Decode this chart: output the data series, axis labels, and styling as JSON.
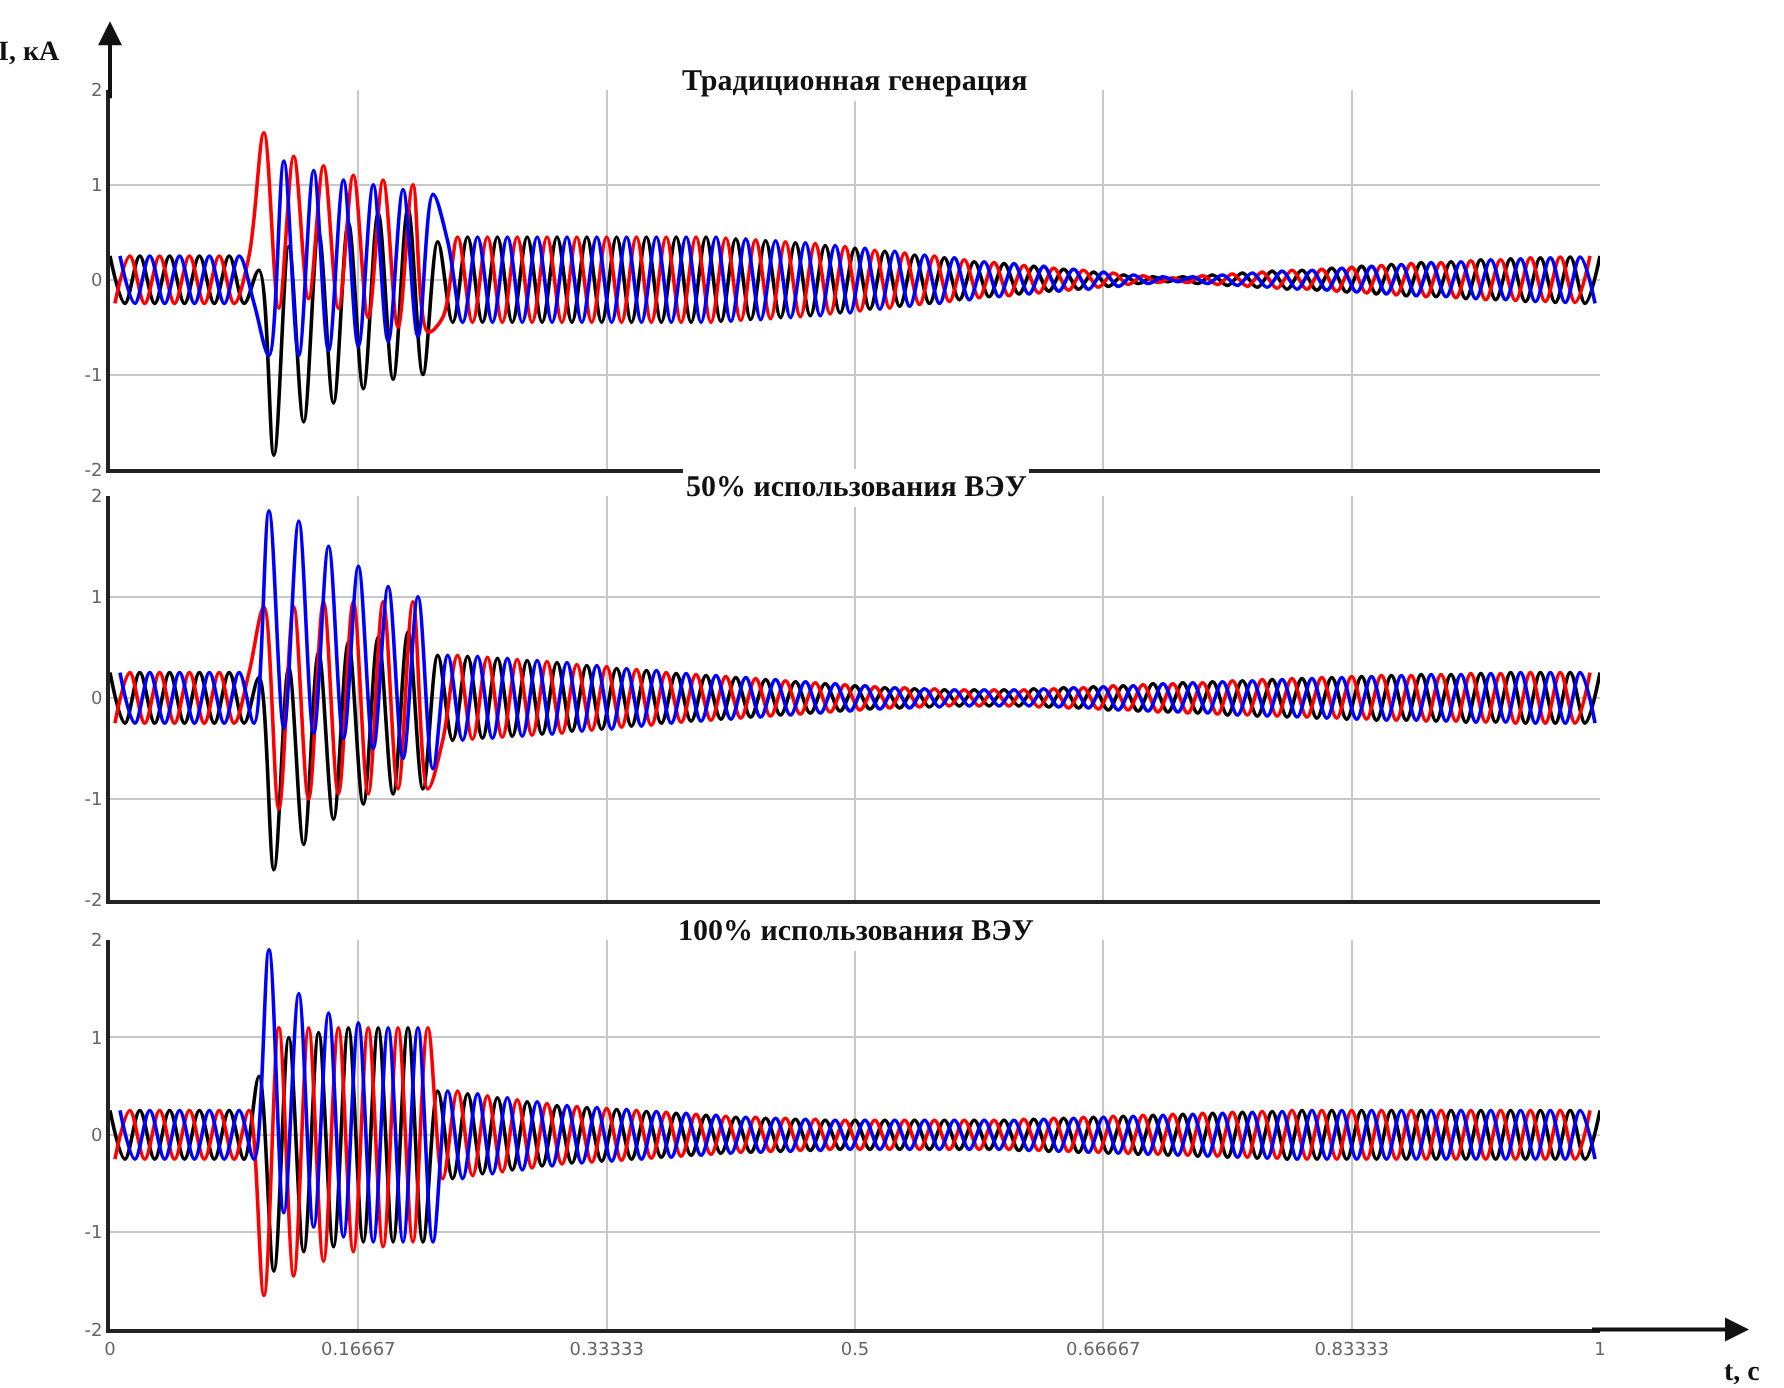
{
  "chart_data": [
    {
      "type": "line",
      "title": "Традиционная генерация",
      "ylabel": "I, кА",
      "xlim": [
        0,
        1
      ],
      "ylim": [
        -2,
        2
      ],
      "xticks": [
        0,
        0.16667,
        0.33333,
        0.5,
        0.66667,
        0.83333,
        1
      ],
      "yticks": [
        -2,
        -1,
        0,
        1,
        2
      ],
      "grid": true,
      "tick_labels": "y",
      "line_style": "solid",
      "series": [
        {
          "color": "#000000",
          "x": [
            0,
            0.01,
            0.02,
            0.03,
            0.04,
            0.05,
            0.06,
            0.07,
            0.08,
            0.09,
            0.1,
            0.11,
            0.12,
            0.13,
            0.14,
            0.15,
            0.16,
            0.17,
            0.18,
            0.19,
            0.2,
            0.21,
            0.22,
            0.23,
            0.24,
            0.25,
            0.26,
            0.27,
            0.28,
            0.29,
            0.3,
            0.31,
            0.32,
            0.33,
            0.34,
            0.35,
            0.36,
            0.37,
            0.38,
            0.39,
            0.4,
            0.41,
            0.42,
            0.43,
            0.44,
            0.45,
            0.46,
            0.47,
            0.48,
            0.49,
            0.5,
            0.51,
            0.52,
            0.53,
            0.54,
            0.55,
            0.56,
            0.57,
            0.58,
            0.59,
            0.6,
            0.61,
            0.62,
            0.63,
            0.64,
            0.65,
            0.66,
            0.67,
            0.68,
            0.69,
            0.7,
            0.71,
            0.72,
            0.73,
            0.74,
            0.75,
            0.76,
            0.77,
            0.78,
            0.79,
            0.8,
            0.81,
            0.82,
            0.83,
            0.84,
            0.85,
            0.86,
            0.87,
            0.88,
            0.89,
            0.9,
            0.91,
            0.92,
            0.93,
            0.94,
            0.95,
            0.96,
            0.97,
            0.98,
            0.99,
            1
          ],
          "values": [
            0.25,
            -0.25,
            0.25,
            -0.25,
            0.25,
            -0.25,
            0.25,
            -0.25,
            0.25,
            -0.25,
            0.1,
            -1.85,
            0.35,
            -1.5,
            0.5,
            -1.3,
            0.6,
            -1.15,
            0.7,
            -1.05,
            0.75,
            -1.0,
            0.4,
            -0.45,
            0.45,
            -0.45,
            0.45,
            -0.45,
            0.45,
            -0.45,
            0.45,
            -0.45,
            0.45,
            -0.45,
            0.45,
            -0.45,
            0.45,
            -0.45,
            0.45,
            -0.45,
            0.45,
            -0.44,
            0.43,
            -0.42,
            0.41,
            -0.4,
            0.39,
            -0.38,
            0.36,
            -0.35,
            0.33,
            -0.31,
            0.3,
            -0.28,
            0.26,
            -0.25,
            0.23,
            -0.21,
            0.19,
            -0.18,
            0.17,
            -0.15,
            0.14,
            -0.12,
            0.11,
            -0.1,
            0.08,
            -0.07,
            0.05,
            -0.04,
            0.03,
            -0.02,
            0.03,
            -0.04,
            0.05,
            -0.06,
            0.07,
            -0.08,
            0.09,
            -0.1,
            0.1,
            -0.11,
            0.12,
            -0.13,
            0.14,
            -0.15,
            0.16,
            -0.17,
            0.18,
            -0.18,
            0.19,
            -0.2,
            0.21,
            -0.21,
            0.22,
            -0.23,
            0.23,
            -0.24,
            0.24,
            -0.25,
            0.25
          ]
        },
        {
          "color": "#ff0000",
          "x": [
            0.0033,
            0.0133,
            0.0233,
            0.0333,
            0.0433,
            0.0533,
            0.0633,
            0.0733,
            0.0833,
            0.0933,
            0.1033,
            0.1133,
            0.1233,
            0.1333,
            0.1433,
            0.1533,
            0.1633,
            0.1733,
            0.1833,
            0.1933,
            0.2033,
            0.2133,
            0.2233,
            0.2333,
            0.2433,
            0.2533,
            0.2633,
            0.2733,
            0.2833,
            0.2933,
            0.3033,
            0.3133,
            0.3233,
            0.3333,
            0.3433,
            0.3533,
            0.3633,
            0.3733,
            0.3833,
            0.3933,
            0.4033,
            0.4133,
            0.4233,
            0.4333,
            0.4433,
            0.4533,
            0.4633,
            0.4733,
            0.4833,
            0.4933,
            0.5033,
            0.5133,
            0.5233,
            0.5333,
            0.5433,
            0.5533,
            0.5633,
            0.5733,
            0.5833,
            0.5933,
            0.6033,
            0.6133,
            0.6233,
            0.6333,
            0.6433,
            0.6533,
            0.6633,
            0.6733,
            0.6833,
            0.6933,
            0.7033,
            0.7133,
            0.7233,
            0.7333,
            0.7433,
            0.7533,
            0.7633,
            0.7733,
            0.7833,
            0.7933,
            0.8033,
            0.8133,
            0.8233,
            0.8333,
            0.8433,
            0.8533,
            0.8633,
            0.8733,
            0.8833,
            0.8933,
            0.9033,
            0.9133,
            0.9233,
            0.9333,
            0.9433,
            0.9533,
            0.9633,
            0.9733,
            0.9833,
            0.9933
          ],
          "values": [
            -0.25,
            0.25,
            -0.25,
            0.25,
            -0.25,
            0.25,
            -0.25,
            0.25,
            -0.25,
            0.25,
            1.55,
            -0.3,
            1.3,
            -0.2,
            1.2,
            -0.3,
            1.1,
            -0.4,
            1.05,
            -0.5,
            1.0,
            -0.55,
            -0.4,
            0.45,
            -0.45,
            0.45,
            -0.45,
            0.45,
            -0.45,
            0.45,
            -0.45,
            0.45,
            -0.45,
            0.45,
            -0.45,
            0.45,
            -0.45,
            0.45,
            -0.45,
            0.45,
            -0.45,
            0.44,
            -0.43,
            0.42,
            -0.41,
            0.4,
            -0.39,
            0.38,
            -0.36,
            0.35,
            -0.33,
            0.31,
            -0.3,
            0.28,
            -0.26,
            0.25,
            -0.23,
            0.21,
            -0.19,
            0.18,
            -0.17,
            0.15,
            -0.14,
            0.12,
            -0.11,
            0.1,
            -0.08,
            0.07,
            -0.05,
            0.04,
            -0.03,
            0.02,
            -0.03,
            0.04,
            -0.05,
            0.06,
            -0.07,
            0.08,
            -0.09,
            0.1,
            -0.1,
            0.11,
            -0.12,
            0.13,
            -0.14,
            0.15,
            -0.16,
            0.17,
            -0.18,
            0.18,
            -0.19,
            0.2,
            -0.21,
            0.21,
            -0.22,
            0.23,
            -0.23,
            0.24,
            -0.24,
            0.25
          ]
        },
        {
          "color": "#0000ff",
          "x": [
            0.0067,
            0.0167,
            0.0267,
            0.0367,
            0.0467,
            0.0567,
            0.0667,
            0.0767,
            0.0867,
            0.0967,
            0.1067,
            0.1167,
            0.1267,
            0.1367,
            0.1467,
            0.1567,
            0.1667,
            0.1767,
            0.1867,
            0.1967,
            0.2067,
            0.2167,
            0.2267,
            0.2367,
            0.2467,
            0.2567,
            0.2667,
            0.2767,
            0.2867,
            0.2967,
            0.3067,
            0.3167,
            0.3267,
            0.3367,
            0.3467,
            0.3567,
            0.3667,
            0.3767,
            0.3867,
            0.3967,
            0.4067,
            0.4167,
            0.4267,
            0.4367,
            0.4467,
            0.4567,
            0.4667,
            0.4767,
            0.4867,
            0.4967,
            0.5067,
            0.5167,
            0.5267,
            0.5367,
            0.5467,
            0.5567,
            0.5667,
            0.5767,
            0.5867,
            0.5967,
            0.6067,
            0.6167,
            0.6267,
            0.6367,
            0.6467,
            0.6567,
            0.6667,
            0.6767,
            0.6867,
            0.6967,
            0.7067,
            0.7167,
            0.7267,
            0.7367,
            0.7467,
            0.7567,
            0.7667,
            0.7767,
            0.7867,
            0.7967,
            0.8067,
            0.8167,
            0.8267,
            0.8367,
            0.8467,
            0.8567,
            0.8667,
            0.8767,
            0.8867,
            0.8967,
            0.9067,
            0.9167,
            0.9267,
            0.9367,
            0.9467,
            0.9567,
            0.9667,
            0.9767,
            0.9867,
            0.9967
          ],
          "values": [
            0.25,
            -0.25,
            0.25,
            -0.25,
            0.25,
            -0.25,
            0.25,
            -0.25,
            0.25,
            -0.25,
            -0.8,
            1.25,
            -0.8,
            1.15,
            -0.75,
            1.05,
            -0.7,
            1.0,
            -0.65,
            0.95,
            -0.6,
            0.9,
            0.4,
            -0.45,
            0.45,
            -0.45,
            0.45,
            -0.45,
            0.45,
            -0.45,
            0.45,
            -0.45,
            0.45,
            -0.45,
            0.45,
            -0.45,
            0.45,
            -0.45,
            0.45,
            -0.45,
            0.45,
            -0.44,
            0.43,
            -0.42,
            0.41,
            -0.4,
            0.39,
            -0.38,
            0.36,
            -0.35,
            0.33,
            -0.31,
            0.3,
            -0.28,
            0.26,
            -0.25,
            0.23,
            -0.21,
            0.19,
            -0.18,
            0.17,
            -0.15,
            0.14,
            -0.12,
            0.11,
            -0.1,
            0.08,
            -0.07,
            0.05,
            -0.04,
            0.03,
            -0.02,
            0.03,
            -0.04,
            0.05,
            -0.06,
            0.07,
            -0.08,
            0.09,
            -0.1,
            0.1,
            -0.11,
            0.12,
            -0.13,
            0.14,
            -0.15,
            0.16,
            -0.17,
            0.18,
            -0.18,
            0.19,
            -0.2,
            0.21,
            -0.21,
            0.22,
            -0.23,
            0.23,
            -0.24,
            0.24,
            -0.25
          ]
        }
      ]
    },
    {
      "type": "line",
      "title": "50% использования ВЭУ",
      "xlim": [
        0,
        1
      ],
      "ylim": [
        -2,
        2
      ],
      "xticks": [
        0,
        0.16667,
        0.33333,
        0.5,
        0.66667,
        0.83333,
        1
      ],
      "yticks": [
        -2,
        -1,
        0,
        1,
        2
      ],
      "grid": true,
      "tick_labels": "y",
      "line_style": "solid",
      "series": [
        {
          "color": "#000000",
          "x": [
            0,
            0.01,
            0.02,
            0.03,
            0.04,
            0.05,
            0.06,
            0.07,
            0.08,
            0.09,
            0.1,
            0.11,
            0.12,
            0.13,
            0.14,
            0.15,
            0.16,
            0.17,
            0.18,
            0.19,
            0.2,
            0.21,
            0.22,
            0.23,
            0.24,
            0.25,
            0.26,
            0.27,
            0.28,
            0.29,
            0.3,
            0.31,
            0.32,
            0.33,
            0.34,
            0.35,
            0.36,
            0.37,
            0.38,
            0.39,
            0.4,
            0.41,
            0.42,
            0.43,
            0.44,
            0.45,
            0.46,
            0.47,
            0.48,
            0.49,
            0.5,
            0.51,
            0.52,
            0.53,
            0.54,
            0.55,
            0.56,
            0.57,
            0.58,
            0.59,
            0.6,
            0.61,
            0.62,
            0.63,
            0.64,
            0.65,
            0.66,
            0.67,
            0.68,
            0.69,
            0.7,
            0.71,
            0.72,
            0.73,
            0.74,
            0.75,
            0.76,
            0.77,
            0.78,
            0.79,
            0.8,
            0.81,
            0.82,
            0.83,
            0.84,
            0.85,
            0.86,
            0.87,
            0.88,
            0.89,
            0.9,
            0.91,
            0.92,
            0.93,
            0.94,
            0.95,
            0.96,
            0.97,
            0.98,
            0.99,
            1
          ],
          "values": [
            0.25,
            -0.25,
            0.25,
            -0.25,
            0.25,
            -0.25,
            0.25,
            -0.25,
            0.25,
            -0.25,
            0.2,
            -1.7,
            0.3,
            -1.45,
            0.45,
            -1.2,
            0.55,
            -1.05,
            0.6,
            -0.95,
            0.65,
            -0.9,
            0.42,
            -0.42,
            0.41,
            -0.4,
            0.39,
            -0.38,
            0.37,
            -0.36,
            0.35,
            -0.33,
            0.32,
            -0.31,
            0.29,
            -0.28,
            0.27,
            -0.25,
            0.24,
            -0.23,
            0.22,
            -0.21,
            0.2,
            -0.19,
            0.18,
            -0.17,
            0.16,
            -0.15,
            0.14,
            -0.13,
            0.12,
            -0.11,
            0.1,
            -0.1,
            0.09,
            -0.09,
            0.08,
            -0.08,
            0.08,
            -0.08,
            0.08,
            -0.08,
            0.09,
            -0.09,
            0.1,
            -0.1,
            0.11,
            -0.12,
            0.12,
            -0.13,
            0.14,
            -0.14,
            0.15,
            -0.15,
            0.16,
            -0.17,
            0.17,
            -0.18,
            0.18,
            -0.19,
            0.19,
            -0.2,
            0.2,
            -0.21,
            0.21,
            -0.22,
            0.22,
            -0.22,
            0.23,
            -0.23,
            0.23,
            -0.24,
            0.24,
            -0.24,
            0.25,
            -0.25,
            0.25,
            -0.25,
            0.25,
            -0.25,
            0.25
          ]
        },
        {
          "color": "#ff0000",
          "x": [
            0.0033,
            0.0133,
            0.0233,
            0.0333,
            0.0433,
            0.0533,
            0.0633,
            0.0733,
            0.0833,
            0.0933,
            0.1033,
            0.1133,
            0.1233,
            0.1333,
            0.1433,
            0.1533,
            0.1633,
            0.1733,
            0.1833,
            0.1933,
            0.2033,
            0.2133,
            0.2233,
            0.2333,
            0.2433,
            0.2533,
            0.2633,
            0.2733,
            0.2833,
            0.2933,
            0.3033,
            0.3133,
            0.3233,
            0.3333,
            0.3433,
            0.3533,
            0.3633,
            0.3733,
            0.3833,
            0.3933,
            0.4033,
            0.4133,
            0.4233,
            0.4333,
            0.4433,
            0.4533,
            0.4633,
            0.4733,
            0.4833,
            0.4933,
            0.5033,
            0.5133,
            0.5233,
            0.5333,
            0.5433,
            0.5533,
            0.5633,
            0.5733,
            0.5833,
            0.5933,
            0.6033,
            0.6133,
            0.6233,
            0.6333,
            0.6433,
            0.6533,
            0.6633,
            0.6733,
            0.6833,
            0.6933,
            0.7033,
            0.7133,
            0.7233,
            0.7333,
            0.7433,
            0.7533,
            0.7633,
            0.7733,
            0.7833,
            0.7933,
            0.8033,
            0.8133,
            0.8233,
            0.8333,
            0.8433,
            0.8533,
            0.8633,
            0.8733,
            0.8833,
            0.8933,
            0.9033,
            0.9133,
            0.9233,
            0.9333,
            0.9433,
            0.9533,
            0.9633,
            0.9733,
            0.9833,
            0.9933
          ],
          "values": [
            -0.25,
            0.25,
            -0.25,
            0.25,
            -0.25,
            0.25,
            -0.25,
            0.25,
            -0.25,
            0.25,
            0.9,
            -1.1,
            0.9,
            -1.0,
            0.95,
            -0.95,
            0.95,
            -0.95,
            0.95,
            -0.9,
            0.95,
            -0.9,
            -0.42,
            0.42,
            -0.41,
            0.4,
            -0.39,
            0.38,
            -0.37,
            0.36,
            -0.35,
            0.33,
            -0.32,
            0.31,
            -0.29,
            0.28,
            -0.27,
            0.25,
            -0.24,
            0.23,
            -0.22,
            0.21,
            -0.2,
            0.19,
            -0.18,
            0.17,
            -0.16,
            0.15,
            -0.14,
            0.13,
            -0.12,
            0.11,
            -0.1,
            0.1,
            -0.09,
            0.09,
            -0.08,
            0.08,
            -0.08,
            0.08,
            -0.08,
            0.08,
            -0.09,
            0.09,
            -0.1,
            0.1,
            -0.11,
            0.12,
            -0.12,
            0.13,
            -0.14,
            0.14,
            -0.15,
            0.15,
            -0.16,
            0.17,
            -0.17,
            0.18,
            -0.18,
            0.19,
            -0.19,
            0.2,
            -0.2,
            0.21,
            -0.21,
            0.22,
            -0.22,
            0.22,
            -0.23,
            0.23,
            -0.23,
            0.24,
            -0.24,
            0.24,
            -0.25,
            0.25,
            -0.25,
            0.25,
            -0.25,
            0.25
          ]
        },
        {
          "color": "#0000ff",
          "x": [
            0.0067,
            0.0167,
            0.0267,
            0.0367,
            0.0467,
            0.0567,
            0.0667,
            0.0767,
            0.0867,
            0.0967,
            0.1067,
            0.1167,
            0.1267,
            0.1367,
            0.1467,
            0.1567,
            0.1667,
            0.1767,
            0.1867,
            0.1967,
            0.2067,
            0.2167,
            0.2267,
            0.2367,
            0.2467,
            0.2567,
            0.2667,
            0.2767,
            0.2867,
            0.2967,
            0.3067,
            0.3167,
            0.3267,
            0.3367,
            0.3467,
            0.3567,
            0.3667,
            0.3767,
            0.3867,
            0.3967,
            0.4067,
            0.4167,
            0.4267,
            0.4367,
            0.4467,
            0.4567,
            0.4667,
            0.4767,
            0.4867,
            0.4967,
            0.5067,
            0.5167,
            0.5267,
            0.5367,
            0.5467,
            0.5567,
            0.5667,
            0.5767,
            0.5867,
            0.5967,
            0.6067,
            0.6167,
            0.6267,
            0.6367,
            0.6467,
            0.6567,
            0.6667,
            0.6767,
            0.6867,
            0.6967,
            0.7067,
            0.7167,
            0.7267,
            0.7367,
            0.7467,
            0.7567,
            0.7667,
            0.7767,
            0.7867,
            0.7967,
            0.8067,
            0.8167,
            0.8267,
            0.8367,
            0.8467,
            0.8567,
            0.8667,
            0.8767,
            0.8867,
            0.8967,
            0.9067,
            0.9167,
            0.9267,
            0.9367,
            0.9467,
            0.9567,
            0.9667,
            0.9767,
            0.9867,
            0.9967
          ],
          "values": [
            0.25,
            -0.25,
            0.25,
            -0.25,
            0.25,
            -0.25,
            0.25,
            -0.25,
            0.25,
            -0.25,
            1.85,
            -0.3,
            1.75,
            -0.35,
            1.5,
            -0.4,
            1.3,
            -0.5,
            1.1,
            -0.6,
            1.0,
            -0.7,
            0.42,
            -0.42,
            0.41,
            -0.4,
            0.39,
            -0.38,
            0.37,
            -0.36,
            0.35,
            -0.33,
            0.32,
            -0.31,
            0.29,
            -0.28,
            0.27,
            -0.25,
            0.24,
            -0.23,
            0.22,
            -0.21,
            0.2,
            -0.19,
            0.18,
            -0.17,
            0.16,
            -0.15,
            0.14,
            -0.13,
            0.12,
            -0.11,
            0.1,
            -0.1,
            0.09,
            -0.09,
            0.08,
            -0.08,
            0.08,
            -0.08,
            0.08,
            -0.08,
            0.09,
            -0.09,
            0.1,
            -0.1,
            0.11,
            -0.12,
            0.12,
            -0.13,
            0.14,
            -0.14,
            0.15,
            -0.15,
            0.16,
            -0.17,
            0.17,
            -0.18,
            0.18,
            -0.19,
            0.19,
            -0.2,
            0.2,
            -0.21,
            0.21,
            -0.22,
            0.22,
            -0.22,
            0.23,
            -0.23,
            0.23,
            -0.24,
            0.24,
            -0.24,
            0.25,
            -0.25,
            0.25,
            -0.25,
            0.25,
            -0.25
          ]
        }
      ]
    },
    {
      "type": "line",
      "title": "100% использования ВЭУ",
      "xlabel": "t, с",
      "xlim": [
        0,
        1
      ],
      "ylim": [
        -2,
        2
      ],
      "xticks": [
        0,
        0.16667,
        0.33333,
        0.5,
        0.66667,
        0.83333,
        1
      ],
      "yticks": [
        -2,
        -1,
        0,
        1,
        2
      ],
      "grid": true,
      "line_style": "solid",
      "series": [
        {
          "color": "#000000",
          "x": [
            0,
            0.01,
            0.02,
            0.03,
            0.04,
            0.05,
            0.06,
            0.07,
            0.08,
            0.09,
            0.1,
            0.11,
            0.12,
            0.13,
            0.14,
            0.15,
            0.16,
            0.17,
            0.18,
            0.19,
            0.2,
            0.21,
            0.22,
            0.23,
            0.24,
            0.25,
            0.26,
            0.27,
            0.28,
            0.29,
            0.3,
            0.31,
            0.32,
            0.33,
            0.34,
            0.35,
            0.36,
            0.37,
            0.38,
            0.39,
            0.4,
            0.41,
            0.42,
            0.43,
            0.44,
            0.45,
            0.46,
            0.47,
            0.48,
            0.49,
            0.5,
            0.51,
            0.52,
            0.53,
            0.54,
            0.55,
            0.56,
            0.57,
            0.58,
            0.59,
            0.6,
            0.61,
            0.62,
            0.63,
            0.64,
            0.65,
            0.66,
            0.67,
            0.68,
            0.69,
            0.7,
            0.71,
            0.72,
            0.73,
            0.74,
            0.75,
            0.76,
            0.77,
            0.78,
            0.79,
            0.8,
            0.81,
            0.82,
            0.83,
            0.84,
            0.85,
            0.86,
            0.87,
            0.88,
            0.89,
            0.9,
            0.91,
            0.92,
            0.93,
            0.94,
            0.95,
            0.96,
            0.97,
            0.98,
            0.99,
            1
          ],
          "values": [
            0.25,
            -0.25,
            0.25,
            -0.25,
            0.25,
            -0.25,
            0.25,
            -0.25,
            0.25,
            -0.25,
            0.6,
            -1.4,
            1.0,
            -1.2,
            1.05,
            -1.15,
            1.1,
            -1.1,
            1.1,
            -1.1,
            1.1,
            -1.1,
            0.45,
            -0.45,
            0.42,
            -0.4,
            0.38,
            -0.36,
            0.34,
            -0.32,
            0.3,
            -0.29,
            0.28,
            -0.27,
            0.26,
            -0.25,
            0.24,
            -0.23,
            0.22,
            -0.21,
            0.2,
            -0.19,
            0.18,
            -0.18,
            0.17,
            -0.17,
            0.16,
            -0.16,
            0.15,
            -0.15,
            0.15,
            -0.15,
            0.15,
            -0.15,
            0.15,
            -0.15,
            0.15,
            -0.15,
            0.15,
            -0.15,
            0.15,
            -0.16,
            0.16,
            -0.17,
            0.17,
            -0.18,
            0.18,
            -0.19,
            0.19,
            -0.2,
            0.2,
            -0.21,
            0.21,
            -0.22,
            0.22,
            -0.23,
            0.23,
            -0.24,
            0.24,
            -0.25,
            0.25,
            -0.25,
            0.25,
            -0.25,
            0.25,
            -0.25,
            0.25,
            -0.25,
            0.25,
            -0.25,
            0.25,
            -0.25,
            0.25,
            -0.25,
            0.25,
            -0.25,
            0.25,
            -0.25,
            0.25,
            -0.25,
            0.25
          ]
        },
        {
          "color": "#ff0000",
          "x": [
            0.0033,
            0.0133,
            0.0233,
            0.0333,
            0.0433,
            0.0533,
            0.0633,
            0.0733,
            0.0833,
            0.0933,
            0.1033,
            0.1133,
            0.1233,
            0.1333,
            0.1433,
            0.1533,
            0.1633,
            0.1733,
            0.1833,
            0.1933,
            0.2033,
            0.2133,
            0.2233,
            0.2333,
            0.2433,
            0.2533,
            0.2633,
            0.2733,
            0.2833,
            0.2933,
            0.3033,
            0.3133,
            0.3233,
            0.3333,
            0.3433,
            0.3533,
            0.3633,
            0.3733,
            0.3833,
            0.3933,
            0.4033,
            0.4133,
            0.4233,
            0.4333,
            0.4433,
            0.4533,
            0.4633,
            0.4733,
            0.4833,
            0.4933,
            0.5033,
            0.5133,
            0.5233,
            0.5333,
            0.5433,
            0.5533,
            0.5633,
            0.5733,
            0.5833,
            0.5933,
            0.6033,
            0.6133,
            0.6233,
            0.6333,
            0.6433,
            0.6533,
            0.6633,
            0.6733,
            0.6833,
            0.6933,
            0.7033,
            0.7133,
            0.7233,
            0.7333,
            0.7433,
            0.7533,
            0.7633,
            0.7733,
            0.7833,
            0.7933,
            0.8033,
            0.8133,
            0.8233,
            0.8333,
            0.8433,
            0.8533,
            0.8633,
            0.8733,
            0.8833,
            0.8933,
            0.9033,
            0.9133,
            0.9233,
            0.9333,
            0.9433,
            0.9533,
            0.9633,
            0.9733,
            0.9833,
            0.9933
          ],
          "values": [
            -0.25,
            0.25,
            -0.25,
            0.25,
            -0.25,
            0.25,
            -0.25,
            0.25,
            -0.25,
            0.25,
            -1.65,
            1.1,
            -1.45,
            1.1,
            -1.3,
            1.1,
            -1.2,
            1.1,
            -1.15,
            1.1,
            -1.1,
            1.1,
            -0.45,
            0.45,
            -0.42,
            0.4,
            -0.38,
            0.36,
            -0.34,
            0.32,
            -0.3,
            0.29,
            -0.28,
            0.27,
            -0.26,
            0.25,
            -0.24,
            0.23,
            -0.22,
            0.21,
            -0.2,
            0.19,
            -0.18,
            0.18,
            -0.17,
            0.17,
            -0.16,
            0.16,
            -0.15,
            0.15,
            -0.15,
            0.15,
            -0.15,
            0.15,
            -0.15,
            0.15,
            -0.15,
            0.15,
            -0.15,
            0.15,
            -0.15,
            0.16,
            -0.16,
            0.17,
            -0.17,
            0.18,
            -0.18,
            0.19,
            -0.19,
            0.2,
            -0.2,
            0.21,
            -0.21,
            0.22,
            -0.22,
            0.23,
            -0.23,
            0.24,
            -0.24,
            0.25,
            -0.25,
            0.25,
            -0.25,
            0.25,
            -0.25,
            0.25,
            -0.25,
            0.25,
            -0.25,
            0.25,
            -0.25,
            0.25,
            -0.25,
            0.25,
            -0.25,
            0.25,
            -0.25,
            0.25,
            -0.25,
            0.25
          ]
        },
        {
          "color": "#0000ff",
          "x": [
            0.0067,
            0.0167,
            0.0267,
            0.0367,
            0.0467,
            0.0567,
            0.0667,
            0.0767,
            0.0867,
            0.0967,
            0.1067,
            0.1167,
            0.1267,
            0.1367,
            0.1467,
            0.1567,
            0.1667,
            0.1767,
            0.1867,
            0.1967,
            0.2067,
            0.2167,
            0.2267,
            0.2367,
            0.2467,
            0.2567,
            0.2667,
            0.2767,
            0.2867,
            0.2967,
            0.3067,
            0.3167,
            0.3267,
            0.3367,
            0.3467,
            0.3567,
            0.3667,
            0.3767,
            0.3867,
            0.3967,
            0.4067,
            0.4167,
            0.4267,
            0.4367,
            0.4467,
            0.4567,
            0.4667,
            0.4767,
            0.4867,
            0.4967,
            0.5067,
            0.5167,
            0.5267,
            0.5367,
            0.5467,
            0.5567,
            0.5667,
            0.5767,
            0.5867,
            0.5967,
            0.6067,
            0.6167,
            0.6267,
            0.6367,
            0.6467,
            0.6567,
            0.6667,
            0.6767,
            0.6867,
            0.6967,
            0.7067,
            0.7167,
            0.7267,
            0.7367,
            0.7467,
            0.7567,
            0.7667,
            0.7767,
            0.7867,
            0.7967,
            0.8067,
            0.8167,
            0.8267,
            0.8367,
            0.8467,
            0.8567,
            0.8667,
            0.8767,
            0.8867,
            0.8967,
            0.9067,
            0.9167,
            0.9267,
            0.9367,
            0.9467,
            0.9567,
            0.9667,
            0.9767,
            0.9867,
            0.9967
          ],
          "values": [
            0.25,
            -0.25,
            0.25,
            -0.25,
            0.25,
            -0.25,
            0.25,
            -0.25,
            0.25,
            -0.25,
            1.9,
            -0.8,
            1.45,
            -0.95,
            1.25,
            -1.05,
            1.15,
            -1.1,
            1.1,
            -1.1,
            1.1,
            -1.1,
            0.45,
            -0.45,
            0.42,
            -0.4,
            0.38,
            -0.36,
            0.34,
            -0.32,
            0.3,
            -0.29,
            0.28,
            -0.27,
            0.26,
            -0.25,
            0.24,
            -0.23,
            0.22,
            -0.21,
            0.2,
            -0.19,
            0.18,
            -0.18,
            0.17,
            -0.17,
            0.16,
            -0.16,
            0.15,
            -0.15,
            0.15,
            -0.15,
            0.15,
            -0.15,
            0.15,
            -0.15,
            0.15,
            -0.15,
            0.15,
            -0.15,
            0.15,
            -0.16,
            0.16,
            -0.17,
            0.17,
            -0.18,
            0.18,
            -0.19,
            0.19,
            -0.2,
            0.2,
            -0.21,
            0.21,
            -0.22,
            0.22,
            -0.23,
            0.23,
            -0.24,
            0.24,
            -0.25,
            0.25,
            -0.25,
            0.25,
            -0.25,
            0.25,
            -0.25,
            0.25,
            -0.25,
            0.25,
            -0.25,
            0.25,
            -0.25,
            0.25,
            -0.25,
            0.25,
            -0.25,
            0.25,
            -0.25,
            0.25,
            -0.25
          ]
        }
      ]
    }
  ]
}
